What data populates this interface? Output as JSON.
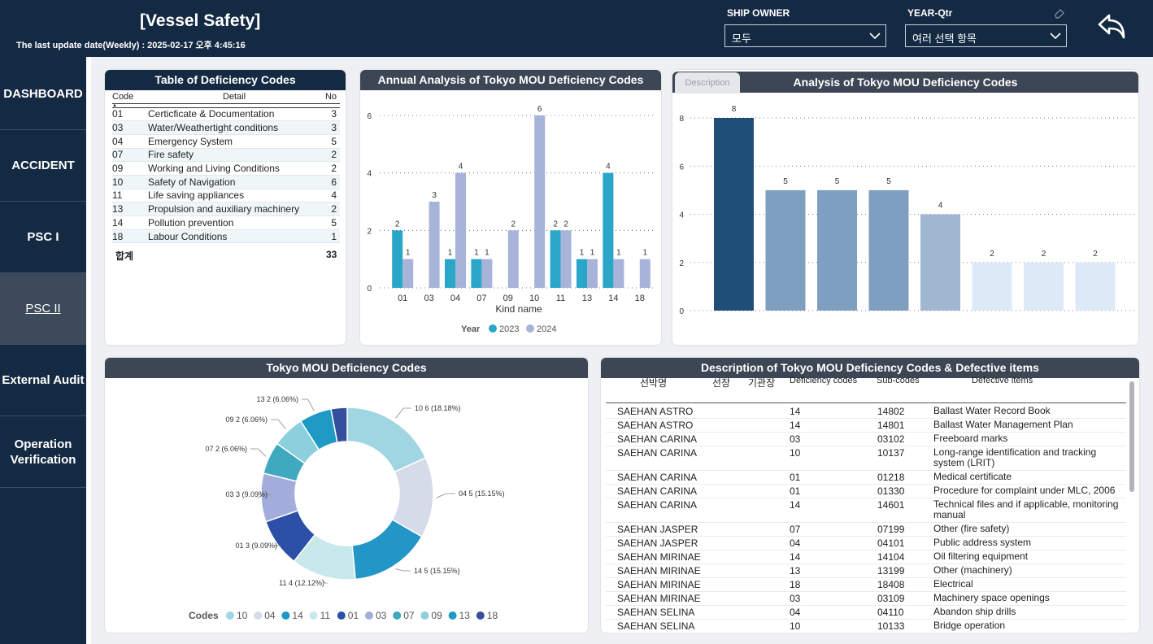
{
  "header": {
    "title": "[Vessel Safety]",
    "update_label": "The last update date(Weekly) :",
    "update_value": "2025-02-17 오후 4:45:16",
    "ship_owner_label": "SHIP OWNER",
    "ship_owner_value": "모두",
    "year_label": "YEAR-Qtr",
    "year_value": "여러 선택 항목"
  },
  "nav": [
    "DASHBOARD",
    "ACCIDENT",
    "PSC I",
    "PSC II",
    "External Audit",
    "Operation Verification"
  ],
  "deficiency_table": {
    "title": "Table of Deficiency Codes",
    "columns": [
      "Code",
      "Detail",
      "No"
    ],
    "rows": [
      [
        "01",
        "Certicficate & Documentation",
        "3"
      ],
      [
        "03",
        "Water/Weathertight conditions",
        "3"
      ],
      [
        "04",
        "Emergency System",
        "5"
      ],
      [
        "07",
        "Fire safety",
        "2"
      ],
      [
        "09",
        "Working and Living Conditions",
        "2"
      ],
      [
        "10",
        "Safety of Navigation",
        "6"
      ],
      [
        "11",
        "Life saving appliances",
        "4"
      ],
      [
        "13",
        "Propulsion and auxiliary machinery",
        "2"
      ],
      [
        "14",
        "Pollution prevention",
        "5"
      ],
      [
        "18",
        "Labour Conditions",
        "1"
      ]
    ],
    "total_label": "합계",
    "total_value": "33"
  },
  "tab_label": "Description",
  "colors": {
    "y2023": "#2aa6c9",
    "y2024": "#a7b3d9",
    "header": "#142a43",
    "card_head": "#3d4654"
  },
  "chart_data": [
    {
      "type": "bar",
      "title": "Annual Analysis of Tokyo MOU Deficiency Codes",
      "xlabel": "Kind name",
      "categories": [
        "01",
        "03",
        "04",
        "07",
        "09",
        "10",
        "11",
        "13",
        "14",
        "18"
      ],
      "series": [
        {
          "name": "2023",
          "values": [
            2,
            null,
            1,
            1,
            null,
            null,
            2,
            1,
            4,
            null
          ]
        },
        {
          "name": "2024",
          "values": [
            1,
            3,
            4,
            1,
            2,
            6,
            2,
            1,
            1,
            1
          ]
        }
      ],
      "yticks": [
        0,
        2,
        4,
        6
      ],
      "ylim": [
        0,
        6
      ],
      "legend_title": "Year"
    },
    {
      "type": "bar",
      "title": "Analysis of Tokyo MOU Deficiency Codes",
      "categories": [
        "",
        "",
        "",
        "",
        "",
        "",
        "",
        ""
      ],
      "values": [
        8,
        5,
        5,
        5,
        4,
        2,
        2,
        2
      ],
      "bar_colors": [
        "#1f4e79",
        "#7f9fc0",
        "#7f9fc0",
        "#7f9fc0",
        "#9fb7d1",
        "#dceaf8",
        "#dceaf8",
        "#dceaf8"
      ],
      "yticks": [
        0,
        2,
        4,
        6,
        8
      ],
      "ylim": [
        0,
        8
      ]
    },
    {
      "type": "pie",
      "title": "Tokyo MOU Deficiency Codes",
      "legend_title": "Codes",
      "slices": [
        {
          "code": "10",
          "value": 6,
          "label": "10 6 (18.18%)",
          "color": "#9fd6e2"
        },
        {
          "code": "04",
          "value": 5,
          "label": "04 5 (15.15%)",
          "color": "#d6dbea"
        },
        {
          "code": "14",
          "value": 5,
          "label": "14 5 (15.15%)",
          "color": "#2196c7"
        },
        {
          "code": "11",
          "value": 4,
          "label": "11 4 (12.12%)",
          "color": "#c9e8ec"
        },
        {
          "code": "01",
          "value": 3,
          "label": "01 3 (9.09%)",
          "color": "#2c4fa8"
        },
        {
          "code": "03",
          "value": 3,
          "label": "03 3 (9.09%)",
          "color": "#a2addb"
        },
        {
          "code": "07",
          "value": 2,
          "label": "07 2 (6.06%)",
          "color": "#3ea9bf"
        },
        {
          "code": "09",
          "value": 2,
          "label": "09 2 (6.06%)",
          "color": "#8ccfdd"
        },
        {
          "code": "13",
          "value": 2,
          "label": "13 2 (6.06%)",
          "color": "#1f9ac4"
        },
        {
          "code": "18",
          "value": 1,
          "label": "",
          "color": "#34509c"
        }
      ]
    }
  ],
  "description_table": {
    "title": "Description of Tokyo MOU Deficiency Codes & Defective items",
    "columns": [
      "선박명",
      "선장",
      "기관장",
      "Deficiency codes",
      "Sub-codes",
      "Defective items"
    ],
    "rows": [
      [
        "SAEHAN ASTRO",
        "",
        "",
        "14",
        "14802",
        "Ballast Water Record Book"
      ],
      [
        "SAEHAN ASTRO",
        "",
        "",
        "14",
        "14801",
        "Ballast Water Management Plan"
      ],
      [
        "SAEHAN CARINA",
        "",
        "",
        "03",
        "03102",
        "Freeboard marks"
      ],
      [
        "SAEHAN CARINA",
        "",
        "",
        "10",
        "10137",
        "Long-range identification and tracking system (LRIT)"
      ],
      [
        "SAEHAN CARINA",
        "",
        "",
        "01",
        "01218",
        "Medical certificate"
      ],
      [
        "SAEHAN CARINA",
        "",
        "",
        "01",
        "01330",
        "Procedure for complaint under MLC, 2006"
      ],
      [
        "SAEHAN CARINA",
        "",
        "",
        "14",
        "14601",
        "Technical files and if applicable, monitoring manual"
      ],
      [
        "SAEHAN JASPER",
        "",
        "",
        "07",
        "07199",
        "Other (fire safety)"
      ],
      [
        "SAEHAN JASPER",
        "",
        "",
        "04",
        "04101",
        "Public address system"
      ],
      [
        "SAEHAN MIRINAE",
        "",
        "",
        "14",
        "14104",
        "Oil filtering equipment"
      ],
      [
        "SAEHAN MIRINAE",
        "",
        "",
        "13",
        "13199",
        "Other (machinery)"
      ],
      [
        "SAEHAN MIRINAE",
        "",
        "",
        "18",
        "18408",
        "Electrical"
      ],
      [
        "SAEHAN MIRINAE",
        "",
        "",
        "03",
        "03109",
        "Machinery space openings"
      ],
      [
        "SAEHAN SELINA",
        "",
        "",
        "04",
        "04110",
        "Abandon ship drills"
      ],
      [
        "SAEHAN SELINA",
        "",
        "",
        "10",
        "10133",
        "Bridge operation"
      ]
    ]
  }
}
